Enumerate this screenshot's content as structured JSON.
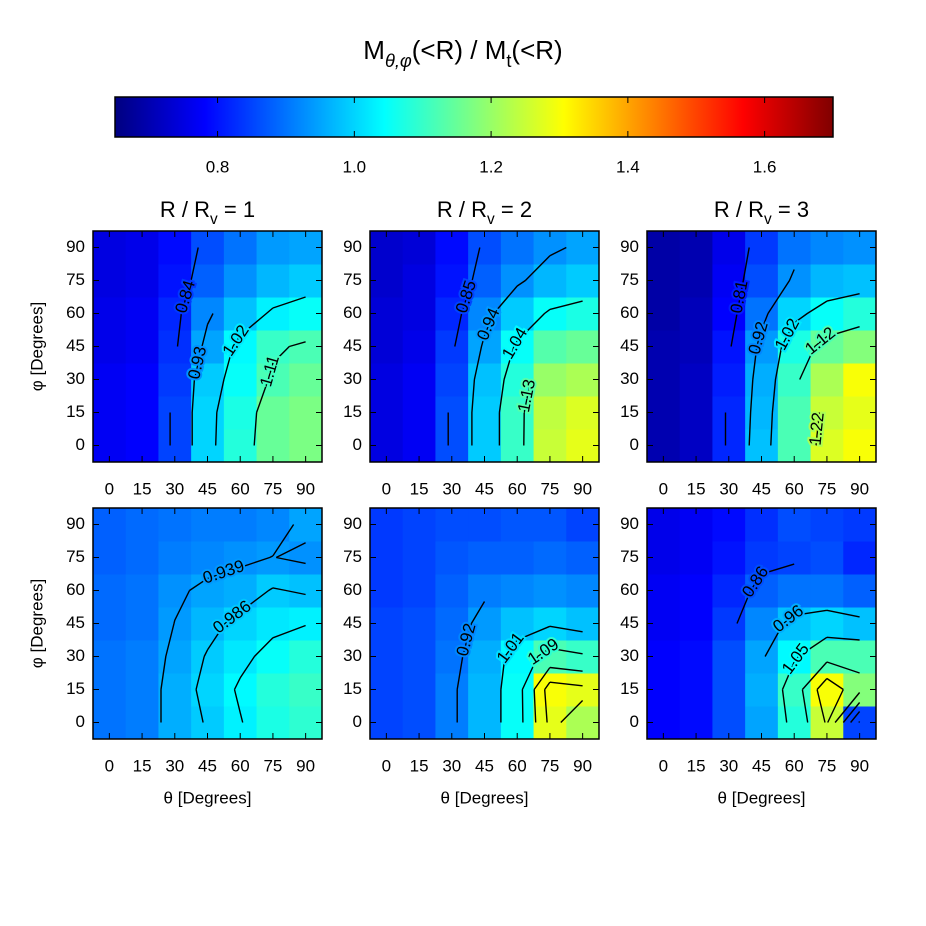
{
  "chart_data": {
    "type": "heatmap",
    "title": [
      {
        "text": "M"
      },
      {
        "text": "θ,φ",
        "sub": true
      },
      {
        "text": "(<R) / M"
      },
      {
        "text": "t",
        "sub": true
      },
      {
        "text": "(<R)"
      }
    ],
    "colormap": "jet",
    "colorbar": {
      "lim": [
        0.65,
        1.7
      ],
      "ticks": [
        0.8,
        {
          "value": 1,
          "label": "1.0"
        },
        1.2,
        1.4,
        1.6
      ]
    },
    "x": [
      0,
      15,
      30,
      45,
      60,
      75,
      90
    ],
    "y": [
      0,
      15,
      30,
      45,
      60,
      75,
      90
    ],
    "xlim": [
      -7.5,
      97.5
    ],
    "ylim": [
      -7.5,
      97.5
    ],
    "xticks": [
      0,
      15,
      30,
      45,
      60,
      75,
      90
    ],
    "yticks": [
      0,
      15,
      30,
      45,
      60,
      75,
      90
    ],
    "x_label": "θ [Degrees]",
    "y_label": "φ [Degrees]",
    "contour_color": "#000000",
    "panels": [
      {
        "title": [
          {
            "text": "R / R"
          },
          {
            "text": "v",
            "sub": true
          },
          {
            "text": " = 1"
          }
        ],
        "values": [
          [
            0.77,
            0.78,
            0.85,
            1.0,
            1.08,
            1.15,
            1.17
          ],
          [
            0.77,
            0.78,
            0.85,
            1.0,
            1.07,
            1.15,
            1.17
          ],
          [
            0.77,
            0.78,
            0.84,
            0.99,
            1.05,
            1.12,
            1.15
          ],
          [
            0.76,
            0.77,
            0.83,
            0.95,
            1.04,
            1.1,
            1.12
          ],
          [
            0.76,
            0.77,
            0.82,
            0.92,
            0.98,
            1.03,
            1.05
          ],
          [
            0.75,
            0.76,
            0.8,
            0.88,
            0.93,
            0.97,
            0.99
          ],
          [
            0.75,
            0.76,
            0.79,
            0.86,
            0.9,
            0.94,
            0.95
          ]
        ],
        "contours": [
          {
            "level": 0.84,
            "labeled": true
          },
          {
            "level": 0.93,
            "labeled": true
          },
          {
            "level": 1.02,
            "labeled": true
          },
          {
            "level": 1.11,
            "labeled": true
          }
        ]
      },
      {
        "title": [
          {
            "text": "R / R"
          },
          {
            "text": "v",
            "sub": true
          },
          {
            "text": " = 2"
          }
        ],
        "values": [
          [
            0.75,
            0.77,
            0.86,
            0.99,
            1.1,
            1.25,
            1.28
          ],
          [
            0.75,
            0.77,
            0.86,
            0.99,
            1.1,
            1.24,
            1.27
          ],
          [
            0.75,
            0.77,
            0.85,
            0.98,
            1.08,
            1.2,
            1.22
          ],
          [
            0.74,
            0.76,
            0.84,
            0.95,
            1.05,
            1.13,
            1.15
          ],
          [
            0.74,
            0.75,
            0.82,
            0.92,
            0.99,
            1.05,
            1.07
          ],
          [
            0.73,
            0.75,
            0.8,
            0.88,
            0.93,
            0.97,
            0.99
          ],
          [
            0.73,
            0.74,
            0.79,
            0.86,
            0.9,
            0.93,
            0.95
          ]
        ],
        "contours": [
          {
            "level": 0.85,
            "labeled": true
          },
          {
            "level": 0.94,
            "labeled": true
          },
          {
            "level": 1.04,
            "labeled": true
          },
          {
            "level": 1.13,
            "labeled": true
          }
        ]
      },
      {
        "title": [
          {
            "text": "R / R"
          },
          {
            "text": "v",
            "sub": true
          },
          {
            "text": " = 3"
          }
        ],
        "values": [
          [
            0.7,
            0.72,
            0.82,
            0.98,
            1.12,
            1.27,
            1.3
          ],
          [
            0.7,
            0.72,
            0.82,
            0.97,
            1.12,
            1.25,
            1.28
          ],
          [
            0.7,
            0.72,
            0.81,
            0.96,
            1.1,
            1.22,
            1.3
          ],
          [
            0.7,
            0.71,
            0.8,
            0.94,
            1.07,
            1.15,
            1.18
          ],
          [
            0.69,
            0.71,
            0.78,
            0.9,
            1.0,
            1.05,
            1.08
          ],
          [
            0.69,
            0.7,
            0.77,
            0.86,
            0.93,
            0.97,
            0.98
          ],
          [
            0.69,
            0.7,
            0.76,
            0.84,
            0.9,
            0.92,
            0.93
          ]
        ],
        "contours": [
          {
            "level": 0.81,
            "labeled": true
          },
          {
            "level": 0.92,
            "labeled": true
          },
          {
            "level": 1.02,
            "labeled": true
          },
          {
            "level": 1.12,
            "labeled": true
          },
          {
            "level": 1.22,
            "labeled": true
          }
        ]
      },
      {
        "values": [
          [
            0.9,
            0.91,
            0.96,
            0.99,
            1.03,
            1.07,
            1.09
          ],
          [
            0.9,
            0.91,
            0.96,
            1.0,
            1.04,
            1.08,
            1.1
          ],
          [
            0.9,
            0.91,
            0.95,
            0.99,
            1.02,
            1.05,
            1.08
          ],
          [
            0.89,
            0.9,
            0.94,
            0.97,
            1.0,
            1.02,
            1.03
          ],
          [
            0.89,
            0.9,
            0.93,
            0.95,
            0.96,
            0.99,
            0.98
          ],
          [
            0.88,
            0.89,
            0.91,
            0.92,
            0.93,
            0.94,
            0.93
          ],
          [
            0.88,
            0.89,
            0.9,
            0.91,
            0.91,
            0.92,
            0.95
          ]
        ],
        "contours": [
          {
            "level": 0.939,
            "labeled": true
          },
          {
            "level": 0.986,
            "labeled": true
          },
          {
            "level": 1.033,
            "labeled": false
          },
          {
            "level": 1.08,
            "labeled": false
          }
        ]
      },
      {
        "values": [
          [
            0.85,
            0.86,
            0.91,
            0.97,
            1.05,
            1.28,
            1.22
          ],
          [
            0.85,
            0.86,
            0.91,
            0.97,
            1.05,
            1.3,
            1.28
          ],
          [
            0.85,
            0.86,
            0.9,
            0.96,
            1.04,
            1.12,
            1.1
          ],
          [
            0.85,
            0.86,
            0.89,
            0.94,
            0.98,
            1.0,
            0.98
          ],
          [
            0.84,
            0.85,
            0.88,
            0.91,
            0.92,
            0.93,
            0.92
          ],
          [
            0.84,
            0.85,
            0.87,
            0.88,
            0.88,
            0.89,
            0.88
          ],
          [
            0.84,
            0.85,
            0.86,
            0.86,
            0.87,
            0.87,
            0.85
          ]
        ],
        "contours": [
          {
            "level": 0.92,
            "labeled": true
          },
          {
            "level": 1.01,
            "labeled": true
          },
          {
            "level": 1.09,
            "labeled": true
          },
          {
            "level": 1.18,
            "labeled": false
          },
          {
            "level": 1.26,
            "labeled": false
          }
        ]
      },
      {
        "values": [
          [
            0.78,
            0.79,
            0.86,
            0.95,
            1.08,
            1.25,
            0.85
          ],
          [
            0.78,
            0.79,
            0.86,
            0.96,
            1.1,
            1.3,
            1.18
          ],
          [
            0.78,
            0.79,
            0.86,
            0.95,
            1.04,
            1.12,
            1.12
          ],
          [
            0.77,
            0.78,
            0.84,
            0.92,
            0.98,
            1.0,
            0.98
          ],
          [
            0.77,
            0.78,
            0.82,
            0.88,
            0.9,
            0.9,
            0.88
          ],
          [
            0.76,
            0.77,
            0.8,
            0.84,
            0.85,
            0.86,
            0.82
          ],
          [
            0.76,
            0.77,
            0.79,
            0.83,
            0.86,
            0.85,
            0.84
          ]
        ],
        "contours": [
          {
            "level": 0.86,
            "labeled": true
          },
          {
            "level": 0.96,
            "labeled": true
          },
          {
            "level": 1.05,
            "labeled": true
          },
          {
            "level": 1.15,
            "labeled": false
          },
          {
            "level": 1.24,
            "labeled": false
          }
        ]
      }
    ]
  }
}
